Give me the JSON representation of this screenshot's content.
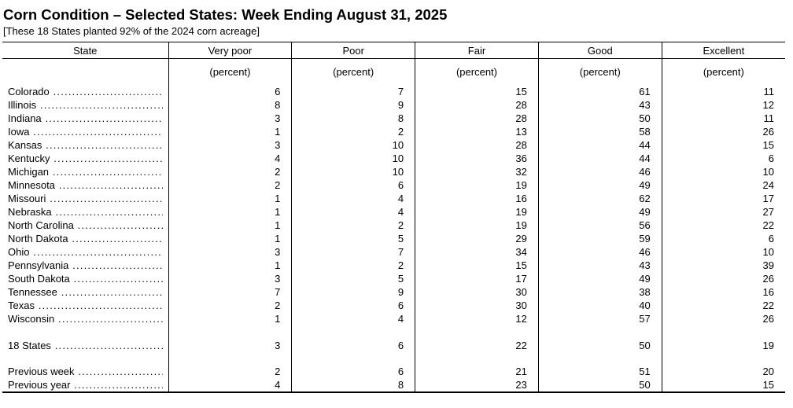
{
  "title": "Corn Condition – Selected States: Week Ending August 31, 2025",
  "subtitle": "[These 18 States planted 92% of the 2024 corn acreage]",
  "table": {
    "columns": [
      "State",
      "Very poor",
      "Poor",
      "Fair",
      "Good",
      "Excellent"
    ],
    "unit_label": "(percent)",
    "state_rows": [
      {
        "state": "Colorado",
        "values": [
          6,
          7,
          15,
          61,
          11
        ]
      },
      {
        "state": "Illinois",
        "values": [
          8,
          9,
          28,
          43,
          12
        ]
      },
      {
        "state": "Indiana",
        "values": [
          3,
          8,
          28,
          50,
          11
        ]
      },
      {
        "state": "Iowa",
        "values": [
          1,
          2,
          13,
          58,
          26
        ]
      },
      {
        "state": "Kansas",
        "values": [
          3,
          10,
          28,
          44,
          15
        ]
      },
      {
        "state": "Kentucky",
        "values": [
          4,
          10,
          36,
          44,
          6
        ]
      },
      {
        "state": "Michigan",
        "values": [
          2,
          10,
          32,
          46,
          10
        ]
      },
      {
        "state": "Minnesota",
        "values": [
          2,
          6,
          19,
          49,
          24
        ]
      },
      {
        "state": "Missouri",
        "values": [
          1,
          4,
          16,
          62,
          17
        ]
      },
      {
        "state": "Nebraska",
        "values": [
          1,
          4,
          19,
          49,
          27
        ]
      },
      {
        "state": "North Carolina",
        "values": [
          1,
          2,
          19,
          56,
          22
        ]
      },
      {
        "state": "North Dakota",
        "values": [
          1,
          5,
          29,
          59,
          6
        ]
      },
      {
        "state": "Ohio",
        "values": [
          3,
          7,
          34,
          46,
          10
        ]
      },
      {
        "state": "Pennsylvania",
        "values": [
          1,
          2,
          15,
          43,
          39
        ]
      },
      {
        "state": "South Dakota",
        "values": [
          3,
          5,
          17,
          49,
          26
        ]
      },
      {
        "state": "Tennessee",
        "values": [
          7,
          9,
          30,
          38,
          16
        ]
      },
      {
        "state": "Texas",
        "values": [
          2,
          6,
          30,
          40,
          22
        ]
      },
      {
        "state": "Wisconsin",
        "values": [
          1,
          4,
          12,
          57,
          26
        ]
      }
    ],
    "total_row": {
      "state": "18 States",
      "values": [
        3,
        6,
        22,
        50,
        19
      ]
    },
    "comparison_rows": [
      {
        "state": "Previous week",
        "values": [
          2,
          6,
          21,
          51,
          20
        ]
      },
      {
        "state": "Previous year",
        "values": [
          4,
          8,
          23,
          50,
          15
        ]
      }
    ]
  }
}
